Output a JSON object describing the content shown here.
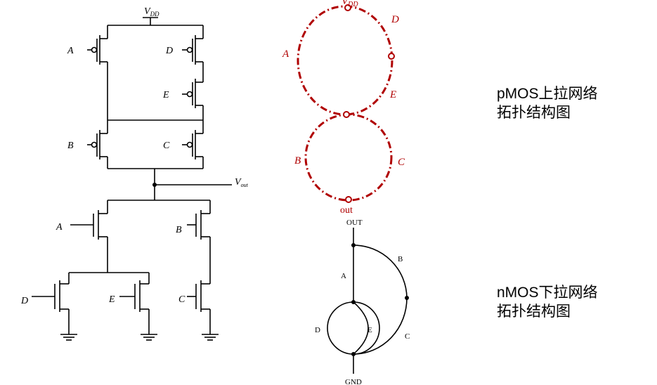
{
  "circuit": {
    "vdd": "V",
    "vdd_sub": "DD",
    "vout": "V",
    "vout_sub": "out",
    "pmos_labels": [
      "A",
      "D",
      "E",
      "B",
      "C"
    ],
    "nmos_labels": [
      "A",
      "B",
      "D",
      "E",
      "C"
    ]
  },
  "pmos_graph": {
    "vdd": "V",
    "vdd_sub": "DD",
    "out": "out",
    "edges": [
      "A",
      "D",
      "E",
      "B",
      "C"
    ],
    "color": "#b00000"
  },
  "nmos_graph": {
    "top": "OUT",
    "bottom": "GND",
    "edges": [
      "A",
      "B",
      "D",
      "E",
      "C"
    ]
  },
  "captions": {
    "pmos_line1": "pMOS上拉网络",
    "pmos_line2": "拓扑结构图",
    "nmos_line1": "nMOS下拉网络",
    "nmos_line2": "拓扑结构图"
  }
}
